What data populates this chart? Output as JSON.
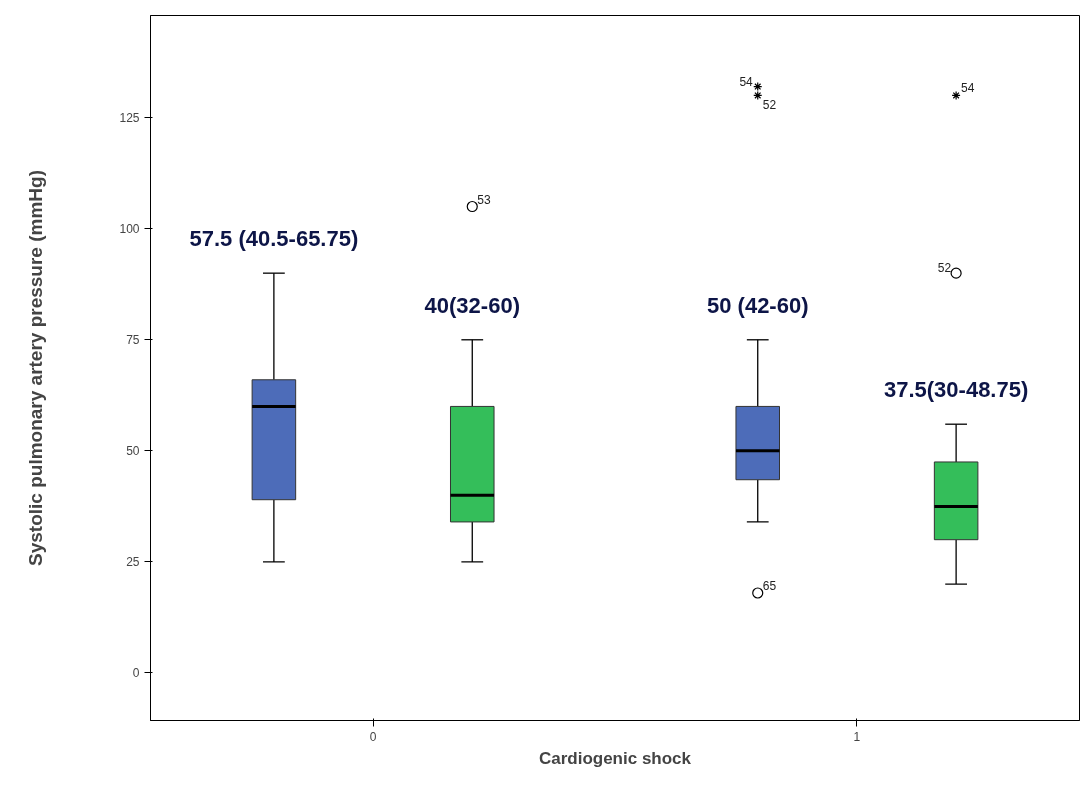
{
  "chart_data": {
    "type": "box",
    "xlabel": "Cardiogenic shock",
    "ylabel": "Systolic pulmonary artery pressure (mmHg)",
    "categories": [
      "0",
      "1"
    ],
    "series": [
      {
        "color": "#4d6cb9",
        "boxes": [
          {
            "low": 25,
            "q1": 39,
            "median": 60,
            "q3": 66,
            "high": 90
          },
          {
            "low": 34,
            "q1": 43.5,
            "median": 50,
            "q3": 60,
            "high": 75,
            "outliers": [
              18,
              132,
              130
            ]
          }
        ]
      },
      {
        "color": "#34be5a",
        "boxes": [
          {
            "low": 25,
            "q1": 34,
            "median": 40,
            "q3": 60,
            "high": 75,
            "outliers": [
              105
            ]
          },
          {
            "low": 20,
            "q1": 30,
            "median": 37.5,
            "q3": 47.5,
            "high": 56,
            "outliers": [
              130,
              90
            ]
          }
        ]
      }
    ],
    "ylim": [
      -10.7,
      148
    ],
    "yticks": [
      0,
      25,
      50,
      75,
      100,
      125
    ],
    "grid": false,
    "annotations": [
      "57.5 (40.5-65.75)",
      "40(32-60)",
      "50 (42-60)",
      "37.5(30-48.75)",
      "53",
      "65",
      "54",
      "52",
      "54",
      "52"
    ]
  }
}
